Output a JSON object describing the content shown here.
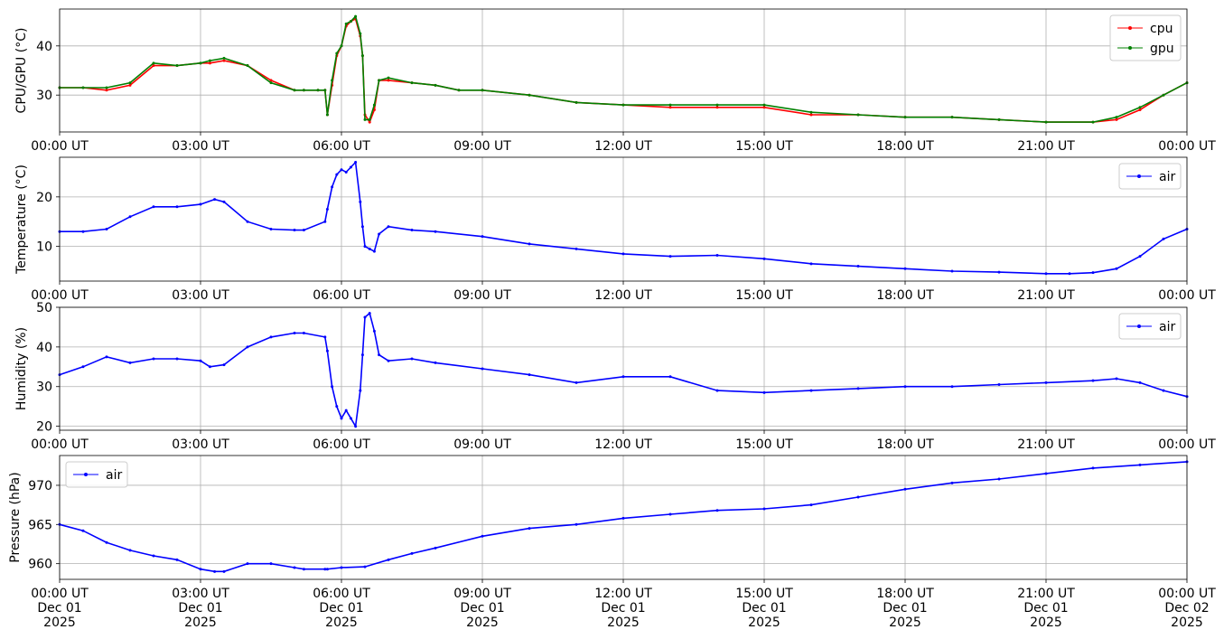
{
  "chart_data": [
    {
      "type": "line",
      "ylabel": "CPU/GPU (°C)",
      "ylim": [
        22.5,
        47.5
      ],
      "yticks": [
        30,
        40
      ],
      "legend": "top-right",
      "xtick_labels": [
        "00:00 UT",
        "03:00 UT",
        "06:00 UT",
        "09:00 UT",
        "12:00 UT",
        "15:00 UT",
        "18:00 UT",
        "21:00 UT",
        "00:00 UT"
      ],
      "grid": true,
      "series": [
        {
          "name": "cpu",
          "color": "#ff0000",
          "x": [
            0,
            0.5,
            1,
            1.5,
            2,
            2.5,
            3,
            3.2,
            3.5,
            4,
            4.5,
            5,
            5.2,
            5.5,
            5.65,
            5.7,
            5.8,
            5.9,
            6,
            6.1,
            6.2,
            6.3,
            6.4,
            6.45,
            6.5,
            6.6,
            6.7,
            6.8,
            7,
            7.5,
            8,
            8.5,
            9,
            10,
            11,
            12,
            13,
            14,
            15,
            16,
            17,
            18,
            19,
            20,
            21,
            22,
            22.5,
            23,
            23.5,
            24
          ],
          "y": [
            31.5,
            31.5,
            31,
            32,
            36,
            36,
            36.5,
            36.5,
            37,
            36,
            33,
            31,
            31,
            31,
            31,
            26,
            32,
            38,
            40,
            44,
            45,
            45.5,
            42,
            38,
            26,
            24.5,
            27,
            33,
            33,
            32.5,
            32,
            31,
            31,
            30,
            28.5,
            28,
            27.5,
            27.5,
            27.5,
            26,
            26,
            25.5,
            25.5,
            25,
            24.5,
            24.5,
            25,
            27,
            30,
            32.5
          ]
        },
        {
          "name": "gpu",
          "color": "#008000",
          "x": [
            0,
            0.5,
            1,
            1.5,
            2,
            2.5,
            3,
            3.2,
            3.5,
            4,
            4.5,
            5,
            5.2,
            5.5,
            5.65,
            5.7,
            5.8,
            5.9,
            6,
            6.1,
            6.2,
            6.3,
            6.4,
            6.45,
            6.5,
            6.6,
            6.7,
            6.8,
            7,
            7.5,
            8,
            8.5,
            9,
            10,
            11,
            12,
            13,
            14,
            15,
            16,
            17,
            18,
            19,
            20,
            21,
            22,
            22.5,
            23,
            23.5,
            24
          ],
          "y": [
            31.5,
            31.5,
            31.5,
            32.5,
            36.5,
            36,
            36.5,
            37,
            37.5,
            36,
            32.5,
            31,
            31,
            31,
            31,
            26,
            33,
            38.5,
            40,
            44.5,
            45,
            46,
            42.5,
            38,
            25,
            25,
            28,
            33,
            33.5,
            32.5,
            32,
            31,
            31,
            30,
            28.5,
            28,
            28,
            28,
            28,
            26.5,
            26,
            25.5,
            25.5,
            25,
            24.5,
            24.5,
            25.5,
            27.5,
            30,
            32.5
          ]
        }
      ]
    },
    {
      "type": "line",
      "ylabel": "Temperature (°C)",
      "ylim": [
        3,
        28
      ],
      "yticks": [
        10,
        20
      ],
      "legend": "top-right",
      "xtick_labels": [
        "00:00 UT",
        "03:00 UT",
        "06:00 UT",
        "09:00 UT",
        "12:00 UT",
        "15:00 UT",
        "18:00 UT",
        "21:00 UT",
        "00:00 UT"
      ],
      "grid": true,
      "series": [
        {
          "name": "air",
          "color": "#0000ff",
          "x": [
            0,
            0.5,
            1,
            1.5,
            2,
            2.5,
            3,
            3.3,
            3.5,
            4,
            4.5,
            5,
            5.2,
            5.65,
            5.7,
            5.8,
            5.9,
            6,
            6.1,
            6.2,
            6.3,
            6.4,
            6.45,
            6.5,
            6.6,
            6.7,
            6.8,
            7,
            7.5,
            8,
            9,
            10,
            11,
            12,
            13,
            14,
            15,
            16,
            17,
            18,
            19,
            20,
            21,
            21.5,
            22,
            22.5,
            23,
            23.5,
            24
          ],
          "y": [
            13,
            13,
            13.5,
            16,
            18,
            18,
            18.5,
            19.5,
            19,
            15,
            13.5,
            13.3,
            13.3,
            15,
            17.5,
            22,
            24.5,
            25.5,
            25,
            26,
            27,
            19,
            14,
            10,
            9.5,
            9,
            12.5,
            14,
            13.3,
            13,
            12,
            10.5,
            9.5,
            8.5,
            8,
            8.2,
            7.5,
            6.5,
            6,
            5.5,
            5,
            4.8,
            4.5,
            4.5,
            4.7,
            5.5,
            8,
            11.5,
            13.5
          ]
        }
      ]
    },
    {
      "type": "line",
      "ylabel": "Humidity (%)",
      "ylim": [
        19,
        50
      ],
      "yticks": [
        20,
        30,
        40,
        50
      ],
      "legend": "top-right",
      "xtick_labels": [
        "00:00 UT",
        "03:00 UT",
        "06:00 UT",
        "09:00 UT",
        "12:00 UT",
        "15:00 UT",
        "18:00 UT",
        "21:00 UT",
        "00:00 UT"
      ],
      "grid": true,
      "series": [
        {
          "name": "air",
          "color": "#0000ff",
          "x": [
            0,
            0.5,
            1,
            1.5,
            2,
            2.5,
            3,
            3.2,
            3.5,
            4,
            4.5,
            5,
            5.2,
            5.65,
            5.7,
            5.8,
            5.9,
            6,
            6.1,
            6.2,
            6.3,
            6.4,
            6.45,
            6.5,
            6.6,
            6.7,
            6.8,
            7,
            7.5,
            8,
            9,
            10,
            11,
            12,
            13,
            14,
            15,
            16,
            17,
            18,
            19,
            20,
            21,
            22,
            22.5,
            23,
            23.5,
            24
          ],
          "y": [
            33,
            35,
            37.5,
            36,
            37,
            37,
            36.5,
            35,
            35.5,
            40,
            42.5,
            43.5,
            43.5,
            42.5,
            39,
            30,
            25,
            22,
            24,
            22,
            20,
            29,
            38,
            47.5,
            48.5,
            44,
            38,
            36.5,
            37,
            36,
            34.5,
            33,
            31,
            32.5,
            32.5,
            29,
            28.5,
            29,
            29.5,
            30,
            30,
            30.5,
            31,
            31.5,
            32,
            31,
            29,
            27.5
          ]
        }
      ]
    },
    {
      "type": "line",
      "ylabel": "Pressure (hPa)",
      "ylim": [
        958,
        973.8
      ],
      "yticks": [
        960,
        965,
        970
      ],
      "legend": "top-left",
      "xtick_labels": [
        [
          "00:00 UT",
          "Dec 01",
          "2025"
        ],
        [
          "03:00 UT",
          "Dec 01",
          "2025"
        ],
        [
          "06:00 UT",
          "Dec 01",
          "2025"
        ],
        [
          "09:00 UT",
          "Dec 01",
          "2025"
        ],
        [
          "12:00 UT",
          "Dec 01",
          "2025"
        ],
        [
          "15:00 UT",
          "Dec 01",
          "2025"
        ],
        [
          "18:00 UT",
          "Dec 01",
          "2025"
        ],
        [
          "21:00 UT",
          "Dec 01",
          "2025"
        ],
        [
          "00:00 UT",
          "Dec 02",
          "2025"
        ]
      ],
      "grid": true,
      "series": [
        {
          "name": "air",
          "color": "#0000ff",
          "x": [
            0,
            0.5,
            1,
            1.5,
            2,
            2.5,
            3,
            3.3,
            3.5,
            4,
            4.5,
            5,
            5.2,
            5.65,
            5.7,
            6,
            6.5,
            7,
            7.5,
            8,
            9,
            10,
            11,
            12,
            13,
            14,
            15,
            16,
            17,
            18,
            19,
            20,
            21,
            22,
            23,
            24
          ],
          "y": [
            965,
            964.2,
            962.7,
            961.7,
            961,
            960.5,
            959.3,
            959,
            959,
            960,
            960,
            959.5,
            959.3,
            959.3,
            959.3,
            959.5,
            959.6,
            960.5,
            961.3,
            962,
            963.5,
            964.5,
            965,
            965.8,
            966.3,
            966.8,
            967,
            967.5,
            968.5,
            969.5,
            970.3,
            970.8,
            971.5,
            972.2,
            972.6,
            973
          ]
        }
      ]
    }
  ]
}
